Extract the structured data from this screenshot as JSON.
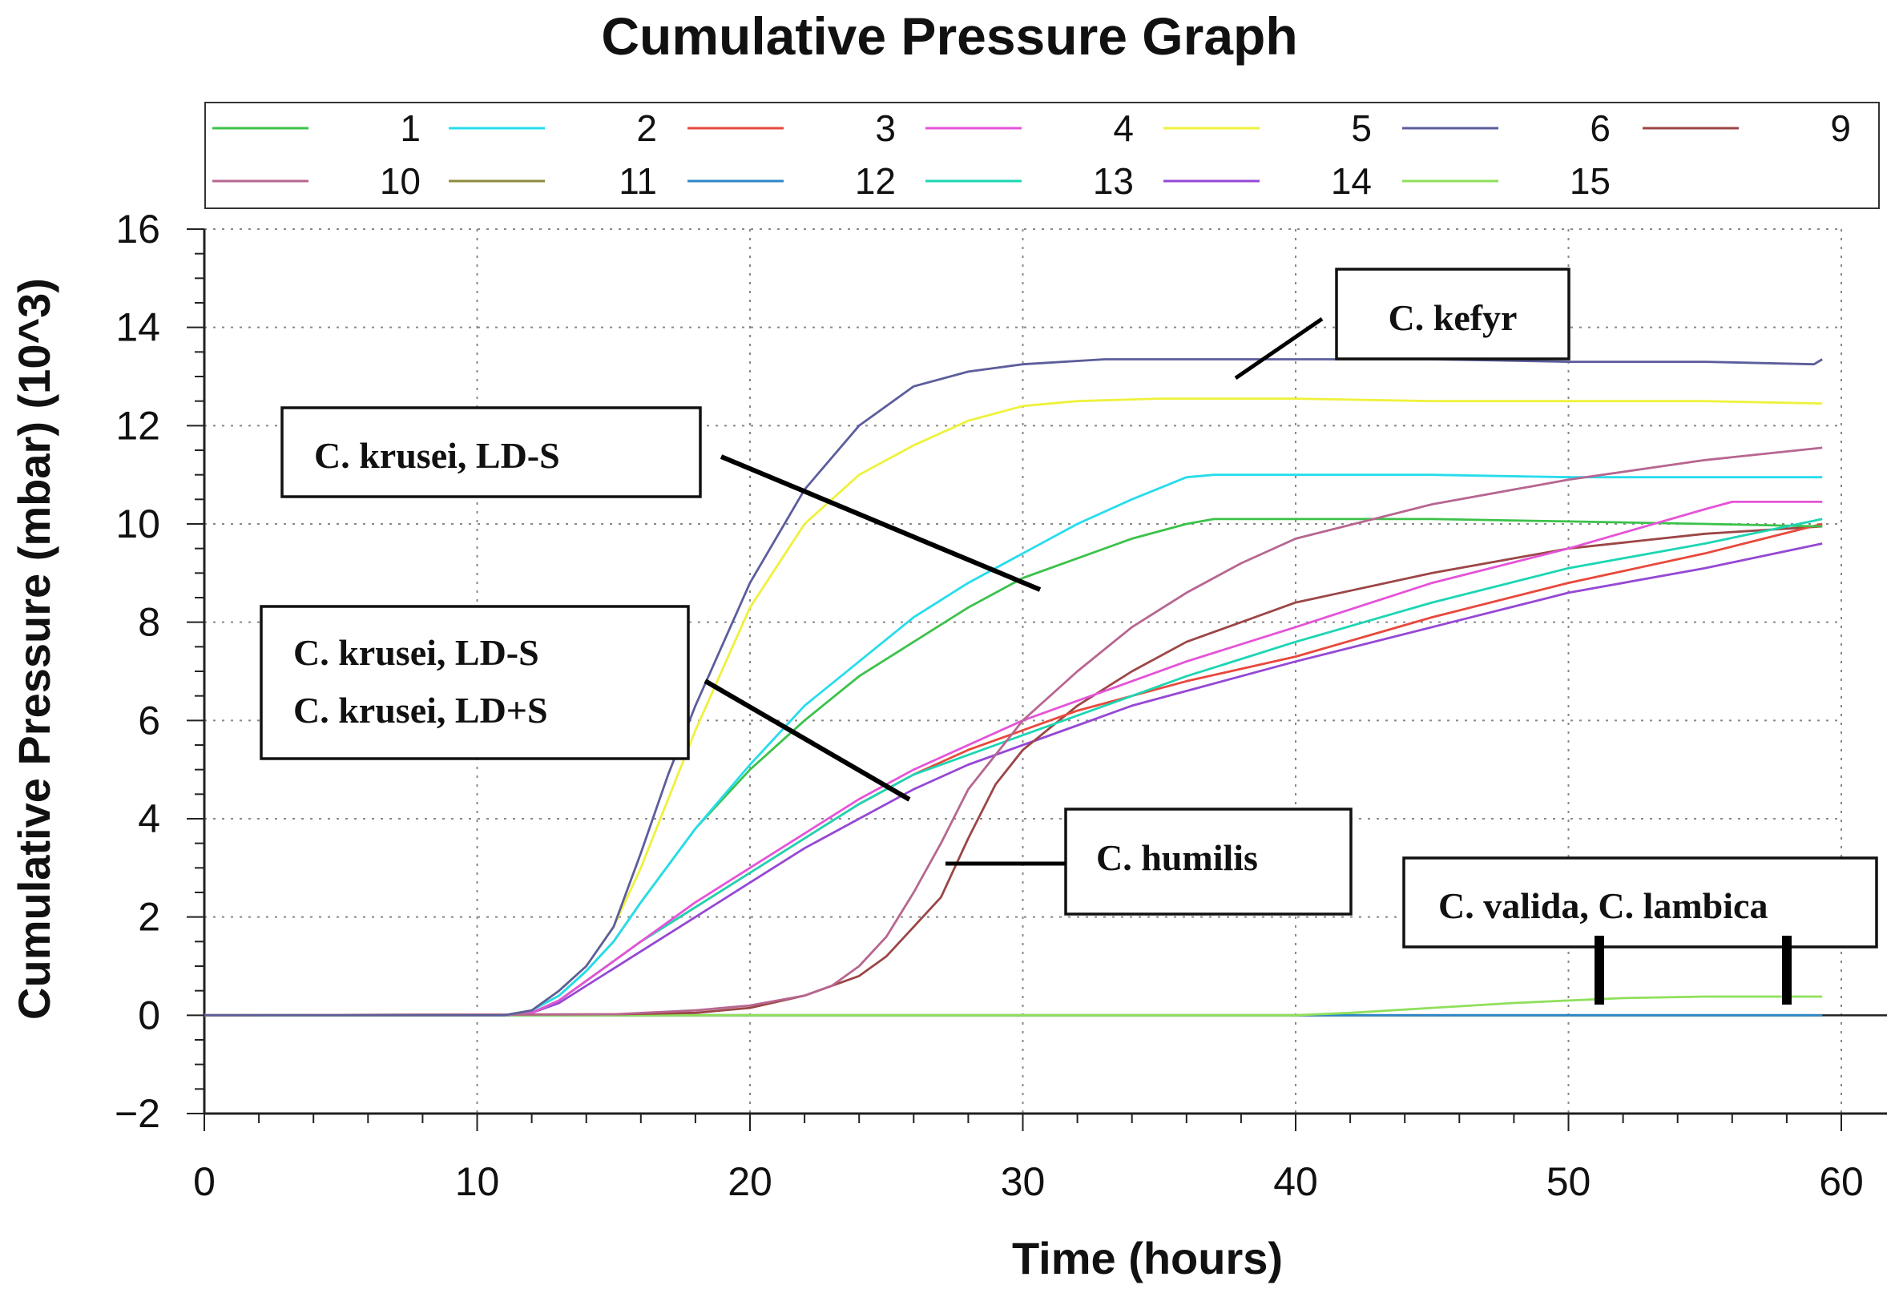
{
  "chart_data": {
    "type": "line",
    "title": "Cumulative Pressure Graph",
    "xlabel": "Time (hours)",
    "ylabel": "Cumulative Pressure (mbar) (10^3)",
    "xlim": [
      0,
      60
    ],
    "ylim": [
      -2,
      16
    ],
    "x_ticks": [
      0,
      10,
      20,
      30,
      40,
      50,
      60
    ],
    "y_ticks": [
      -2,
      0,
      2,
      4,
      6,
      8,
      10,
      12,
      14,
      16
    ],
    "x_tick_labels": [
      "0",
      "10",
      "20",
      "30",
      "40",
      "50",
      "60"
    ],
    "y_tick_labels": [
      "−2",
      "0",
      "2",
      "4",
      "6",
      "8",
      "10",
      "12",
      "14",
      "16"
    ],
    "grid": true,
    "legend_position": "top",
    "series": [
      {
        "name": "1",
        "color": "#3cc24a",
        "points": [
          [
            0,
            0
          ],
          [
            11,
            0
          ],
          [
            12,
            0.1
          ],
          [
            13,
            0.4
          ],
          [
            14,
            0.9
          ],
          [
            15,
            1.5
          ],
          [
            16,
            2.3
          ],
          [
            18,
            3.8
          ],
          [
            20,
            5.0
          ],
          [
            22,
            6.0
          ],
          [
            24,
            6.9
          ],
          [
            26,
            7.6
          ],
          [
            28,
            8.3
          ],
          [
            30,
            8.9
          ],
          [
            32,
            9.3
          ],
          [
            34,
            9.7
          ],
          [
            36,
            10.0
          ],
          [
            37,
            10.1
          ],
          [
            40,
            10.1
          ],
          [
            45,
            10.1
          ],
          [
            50,
            10.05
          ],
          [
            55,
            10.0
          ],
          [
            59.3,
            9.95
          ]
        ]
      },
      {
        "name": "2",
        "color": "#27dcec",
        "points": [
          [
            0,
            0
          ],
          [
            11,
            0
          ],
          [
            12,
            0.1
          ],
          [
            13,
            0.4
          ],
          [
            14,
            0.9
          ],
          [
            15,
            1.5
          ],
          [
            16,
            2.3
          ],
          [
            18,
            3.8
          ],
          [
            20,
            5.1
          ],
          [
            22,
            6.3
          ],
          [
            24,
            7.2
          ],
          [
            26,
            8.1
          ],
          [
            28,
            8.8
          ],
          [
            30,
            9.4
          ],
          [
            32,
            10.0
          ],
          [
            34,
            10.5
          ],
          [
            36,
            10.95
          ],
          [
            37,
            11.0
          ],
          [
            40,
            11.0
          ],
          [
            45,
            11.0
          ],
          [
            50,
            10.95
          ],
          [
            55,
            10.95
          ],
          [
            59.3,
            10.95
          ]
        ]
      },
      {
        "name": "3",
        "color": "#e8483c",
        "points": [
          [
            0,
            0
          ],
          [
            11,
            0
          ],
          [
            12,
            0.05
          ],
          [
            13,
            0.3
          ],
          [
            14,
            0.7
          ],
          [
            16,
            1.5
          ],
          [
            18,
            2.2
          ],
          [
            20,
            2.9
          ],
          [
            22,
            3.6
          ],
          [
            24,
            4.3
          ],
          [
            26,
            4.9
          ],
          [
            28,
            5.4
          ],
          [
            30,
            5.8
          ],
          [
            32,
            6.2
          ],
          [
            34,
            6.5
          ],
          [
            36,
            6.8
          ],
          [
            40,
            7.3
          ],
          [
            45,
            8.1
          ],
          [
            50,
            8.8
          ],
          [
            55,
            9.4
          ],
          [
            59.3,
            10.0
          ]
        ]
      },
      {
        "name": "4",
        "color": "#e553d8",
        "points": [
          [
            0,
            0
          ],
          [
            11,
            0
          ],
          [
            12,
            0.05
          ],
          [
            13,
            0.3
          ],
          [
            14,
            0.7
          ],
          [
            16,
            1.5
          ],
          [
            18,
            2.3
          ],
          [
            20,
            3.0
          ],
          [
            22,
            3.7
          ],
          [
            24,
            4.4
          ],
          [
            26,
            5.0
          ],
          [
            28,
            5.5
          ],
          [
            30,
            6.0
          ],
          [
            32,
            6.4
          ],
          [
            34,
            6.8
          ],
          [
            36,
            7.2
          ],
          [
            40,
            7.9
          ],
          [
            45,
            8.8
          ],
          [
            50,
            9.5
          ],
          [
            55,
            10.3
          ],
          [
            56,
            10.45
          ],
          [
            59.3,
            10.45
          ]
        ]
      },
      {
        "name": "5",
        "color": "#eef23c",
        "points": [
          [
            0,
            0
          ],
          [
            11,
            0
          ],
          [
            12,
            0.1
          ],
          [
            13,
            0.5
          ],
          [
            14,
            1.0
          ],
          [
            15,
            1.8
          ],
          [
            16,
            3.0
          ],
          [
            17,
            4.4
          ],
          [
            18,
            5.8
          ],
          [
            20,
            8.3
          ],
          [
            22,
            10.0
          ],
          [
            24,
            11.0
          ],
          [
            26,
            11.6
          ],
          [
            28,
            12.1
          ],
          [
            30,
            12.4
          ],
          [
            32,
            12.5
          ],
          [
            35,
            12.55
          ],
          [
            40,
            12.55
          ],
          [
            45,
            12.5
          ],
          [
            50,
            12.5
          ],
          [
            55,
            12.5
          ],
          [
            59.3,
            12.45
          ]
        ]
      },
      {
        "name": "6",
        "color": "#5c5d9c",
        "points": [
          [
            0,
            0
          ],
          [
            11,
            0
          ],
          [
            12,
            0.1
          ],
          [
            13,
            0.5
          ],
          [
            14,
            1.0
          ],
          [
            15,
            1.8
          ],
          [
            16,
            3.3
          ],
          [
            17,
            4.9
          ],
          [
            18,
            6.3
          ],
          [
            20,
            8.8
          ],
          [
            22,
            10.7
          ],
          [
            24,
            12.0
          ],
          [
            26,
            12.8
          ],
          [
            28,
            13.1
          ],
          [
            30,
            13.25
          ],
          [
            33,
            13.35
          ],
          [
            40,
            13.35
          ],
          [
            45,
            13.35
          ],
          [
            50,
            13.3
          ],
          [
            55,
            13.3
          ],
          [
            59,
            13.25
          ],
          [
            59.3,
            13.35
          ]
        ]
      },
      {
        "name": "9",
        "color": "#9c4646",
        "points": [
          [
            0,
            0
          ],
          [
            15,
            0.02
          ],
          [
            18,
            0.05
          ],
          [
            20,
            0.15
          ],
          [
            22,
            0.4
          ],
          [
            24,
            0.8
          ],
          [
            25,
            1.2
          ],
          [
            26,
            1.8
          ],
          [
            27,
            2.4
          ],
          [
            28,
            3.6
          ],
          [
            29,
            4.7
          ],
          [
            30,
            5.4
          ],
          [
            32,
            6.3
          ],
          [
            34,
            7.0
          ],
          [
            36,
            7.6
          ],
          [
            38,
            8.0
          ],
          [
            40,
            8.4
          ],
          [
            45,
            9.0
          ],
          [
            50,
            9.5
          ],
          [
            55,
            9.8
          ],
          [
            59.3,
            9.95
          ]
        ]
      },
      {
        "name": "10",
        "color": "#b76690",
        "points": [
          [
            0,
            0
          ],
          [
            15,
            0.02
          ],
          [
            18,
            0.1
          ],
          [
            20,
            0.2
          ],
          [
            22,
            0.4
          ],
          [
            23,
            0.6
          ],
          [
            24,
            1.0
          ],
          [
            25,
            1.6
          ],
          [
            26,
            2.5
          ],
          [
            27,
            3.5
          ],
          [
            28,
            4.6
          ],
          [
            30,
            6.0
          ],
          [
            32,
            7.0
          ],
          [
            34,
            7.9
          ],
          [
            36,
            8.6
          ],
          [
            38,
            9.2
          ],
          [
            40,
            9.7
          ],
          [
            45,
            10.4
          ],
          [
            50,
            10.9
          ],
          [
            55,
            11.3
          ],
          [
            59.3,
            11.55
          ]
        ]
      },
      {
        "name": "11",
        "color": "#8c8c3c",
        "points": [
          [
            0,
            0
          ],
          [
            20,
            0
          ],
          [
            40,
            0
          ],
          [
            59.3,
            0
          ]
        ]
      },
      {
        "name": "12",
        "color": "#2d86c9",
        "points": [
          [
            0,
            0
          ],
          [
            20,
            0
          ],
          [
            40,
            0
          ],
          [
            59.3,
            0
          ]
        ]
      },
      {
        "name": "13",
        "color": "#1cd6b3",
        "points": [
          [
            0,
            0
          ],
          [
            11,
            0
          ],
          [
            12,
            0.05
          ],
          [
            13,
            0.3
          ],
          [
            14,
            0.7
          ],
          [
            16,
            1.5
          ],
          [
            18,
            2.2
          ],
          [
            20,
            2.9
          ],
          [
            22,
            3.6
          ],
          [
            24,
            4.3
          ],
          [
            26,
            4.9
          ],
          [
            28,
            5.3
          ],
          [
            30,
            5.7
          ],
          [
            32,
            6.1
          ],
          [
            34,
            6.5
          ],
          [
            36,
            6.9
          ],
          [
            40,
            7.6
          ],
          [
            45,
            8.4
          ],
          [
            50,
            9.1
          ],
          [
            55,
            9.6
          ],
          [
            59.3,
            10.1
          ]
        ]
      },
      {
        "name": "14",
        "color": "#9548d4",
        "points": [
          [
            0,
            0
          ],
          [
            11,
            0
          ],
          [
            12,
            0.05
          ],
          [
            13,
            0.25
          ],
          [
            14,
            0.6
          ],
          [
            16,
            1.3
          ],
          [
            18,
            2.0
          ],
          [
            20,
            2.7
          ],
          [
            22,
            3.4
          ],
          [
            24,
            4.0
          ],
          [
            26,
            4.6
          ],
          [
            28,
            5.1
          ],
          [
            30,
            5.5
          ],
          [
            32,
            5.9
          ],
          [
            34,
            6.3
          ],
          [
            36,
            6.6
          ],
          [
            40,
            7.2
          ],
          [
            45,
            7.9
          ],
          [
            50,
            8.6
          ],
          [
            55,
            9.1
          ],
          [
            59.3,
            9.6
          ]
        ]
      },
      {
        "name": "15",
        "color": "#8fe05a",
        "points": [
          [
            0,
            0
          ],
          [
            40,
            0
          ],
          [
            42,
            0.05
          ],
          [
            45,
            0.15
          ],
          [
            48,
            0.25
          ],
          [
            50,
            0.3
          ],
          [
            52,
            0.35
          ],
          [
            55,
            0.38
          ],
          [
            59.3,
            0.38
          ]
        ]
      }
    ],
    "annotations": [
      {
        "text": "C. kefyr",
        "lines": [
          "C. kefyr"
        ]
      },
      {
        "text": "C. krusei, LD-S",
        "lines": [
          "C. krusei, LD-S"
        ]
      },
      {
        "text": "C. krusei, LD-S / C. krusei, LD+S",
        "lines": [
          "C. krusei, LD-S",
          "C. krusei, LD+S"
        ]
      },
      {
        "text": "C. humilis",
        "lines": [
          "C. humilis"
        ]
      },
      {
        "text": "C. valida, C. lambica",
        "lines": [
          "C. valida, C. lambica"
        ]
      }
    ]
  }
}
